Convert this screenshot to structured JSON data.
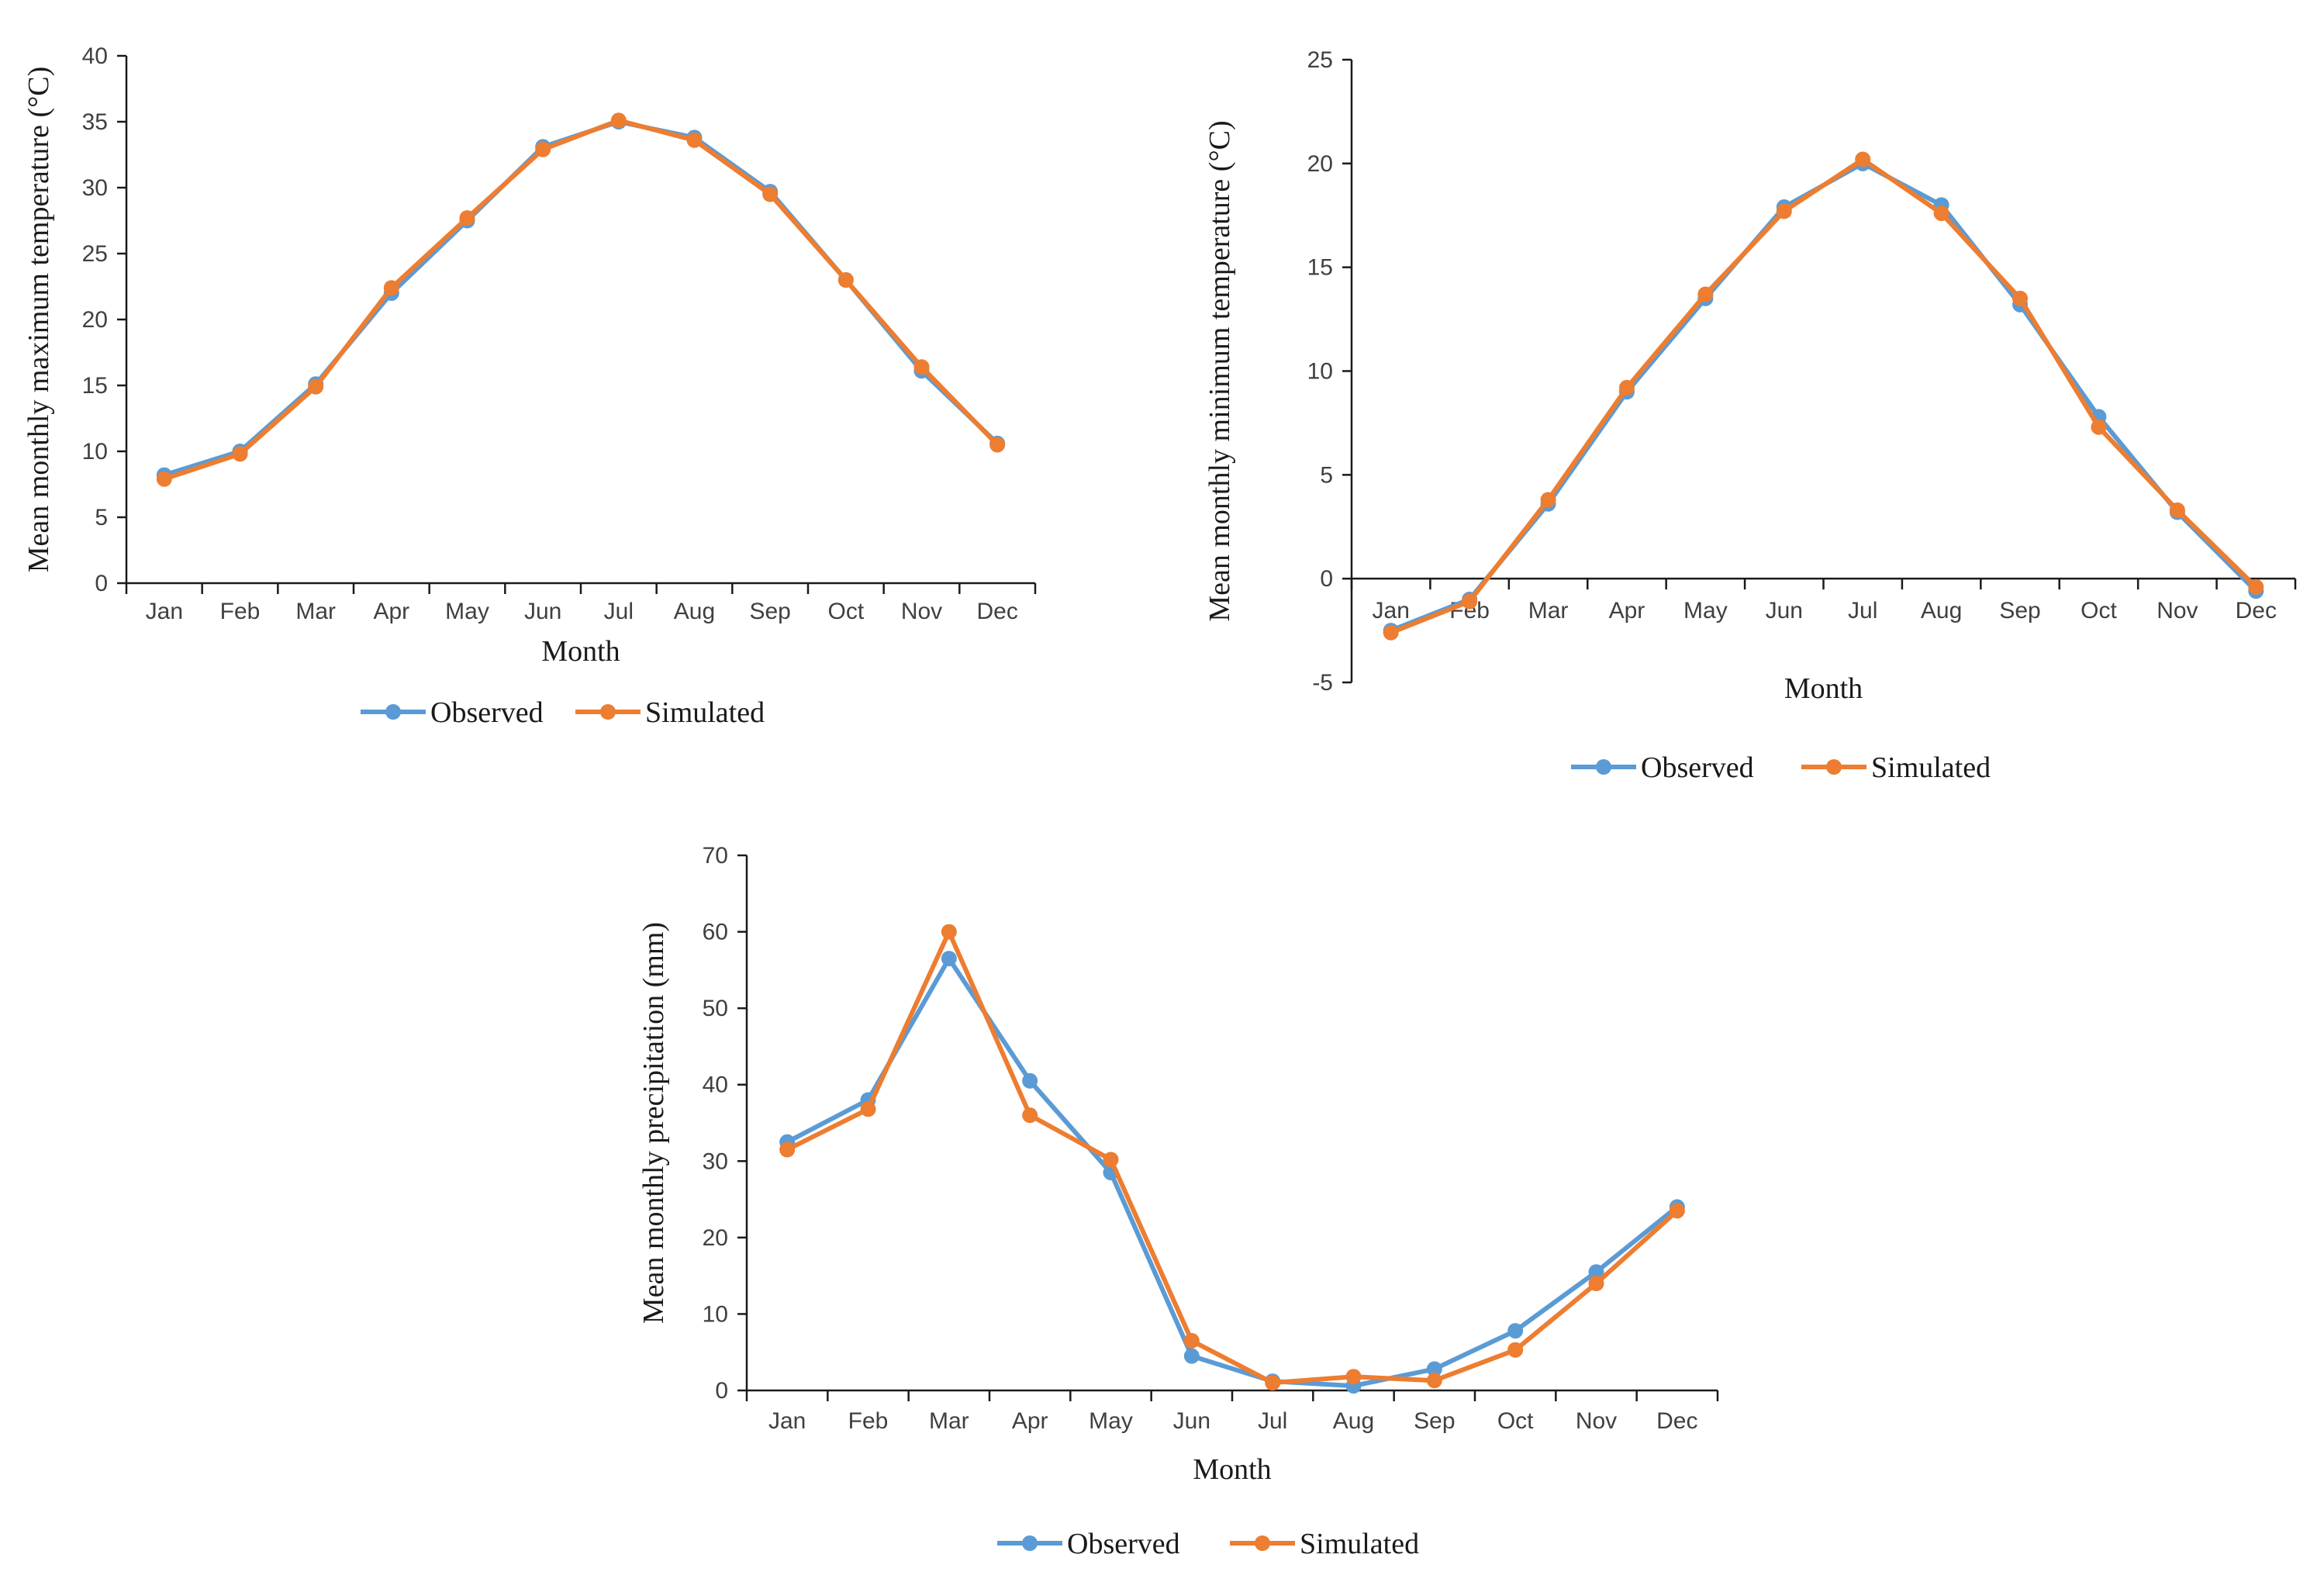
{
  "colors": {
    "observed": "#5B9BD5",
    "simulated": "#ED7D31",
    "axis": "#1a1a1a"
  },
  "chart_data": [
    {
      "type": "line",
      "id": "tmax",
      "title": "",
      "xlabel": "Month",
      "ylabel": "Mean monthly maximum temperature (°C)",
      "ylim": [
        0,
        40
      ],
      "yticks": [
        "0",
        "5",
        "10",
        "15",
        "20",
        "25",
        "30",
        "35",
        "40"
      ],
      "categories": [
        "Jan",
        "Feb",
        "Mar",
        "Apr",
        "May",
        "Jun",
        "Jul",
        "Aug",
        "Sep",
        "Oct",
        "Nov",
        "Dec"
      ],
      "series": [
        {
          "name": "Observed",
          "values": [
            8.2,
            10.0,
            15.1,
            22.0,
            27.5,
            33.1,
            35.0,
            33.8,
            29.7,
            23.0,
            16.1,
            10.6
          ]
        },
        {
          "name": "Simulated",
          "values": [
            7.9,
            9.8,
            14.9,
            22.4,
            27.7,
            32.9,
            35.1,
            33.6,
            29.5,
            23.0,
            16.4,
            10.5
          ]
        }
      ]
    },
    {
      "type": "line",
      "id": "tmin",
      "title": "",
      "xlabel": "Month",
      "ylabel": "Mean monthly minimum temperature (°C)",
      "ylim": [
        -5,
        25
      ],
      "yticks": [
        "-5",
        "0",
        "5",
        "10",
        "15",
        "20",
        "25"
      ],
      "categories": [
        "Jan",
        "Feb",
        "Mar",
        "Apr",
        "May",
        "Jun",
        "Jul",
        "Aug",
        "Sep",
        "Oct",
        "Nov",
        "Dec"
      ],
      "series": [
        {
          "name": "Observed",
          "values": [
            -2.5,
            -1.0,
            3.6,
            9.0,
            13.5,
            17.9,
            20.0,
            18.0,
            13.2,
            7.8,
            3.2,
            -0.6
          ]
        },
        {
          "name": "Simulated",
          "values": [
            -2.6,
            -1.1,
            3.8,
            9.2,
            13.7,
            17.7,
            20.2,
            17.6,
            13.5,
            7.3,
            3.3,
            -0.4
          ]
        }
      ]
    },
    {
      "type": "line",
      "id": "precip",
      "title": "",
      "xlabel": "Month",
      "ylabel": "Mean monthly precipitation (mm)",
      "ylim": [
        0,
        70
      ],
      "yticks": [
        "0",
        "10",
        "20",
        "30",
        "40",
        "50",
        "60",
        "70"
      ],
      "categories": [
        "Jan",
        "Feb",
        "Mar",
        "Apr",
        "May",
        "Jun",
        "Jul",
        "Aug",
        "Sep",
        "Oct",
        "Nov",
        "Dec"
      ],
      "series": [
        {
          "name": "Observed",
          "values": [
            32.5,
            38.0,
            56.5,
            40.5,
            28.5,
            4.5,
            1.2,
            0.6,
            2.8,
            7.8,
            15.5,
            24.0
          ]
        },
        {
          "name": "Simulated",
          "values": [
            31.5,
            36.8,
            60.0,
            36.0,
            30.2,
            6.5,
            1.0,
            1.8,
            1.3,
            5.3,
            14.0,
            23.5
          ]
        }
      ]
    }
  ]
}
